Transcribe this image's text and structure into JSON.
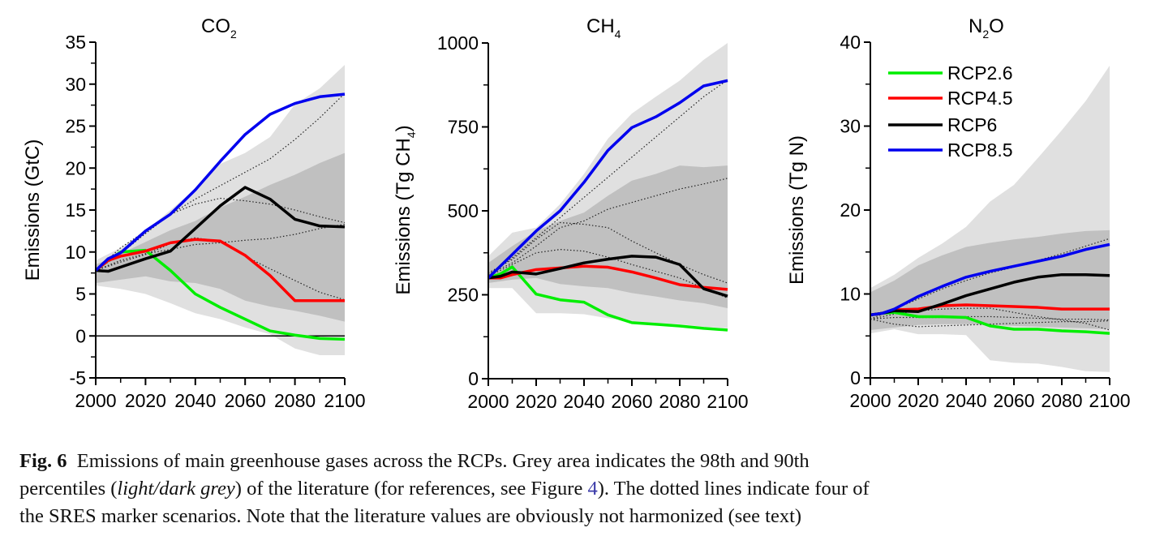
{
  "figure": {
    "caption": {
      "label": "Fig. 6",
      "line1": "Emissions of main greenhouse gases across the RCPs. Grey area indicates the 98th and 90th",
      "line2_a": "percentiles (",
      "line2_italic": "light/dark grey",
      "line2_b": ") of the literature (for references, see Figure ",
      "line2_ref": "4",
      "line2_c": "). The dotted lines indicate four of",
      "line3": "the SRES marker scenarios. Note that the literature values are obviously not harmonized (see text)"
    },
    "colors": {
      "RCP2.6": "#00ee00",
      "RCP4.5": "#ff0000",
      "RCP6": "#000000",
      "RCP8.5": "#0000ee",
      "band98": "#e0e0e0",
      "band90": "#c0c0c0"
    }
  },
  "chart_data": [
    {
      "type": "line",
      "title": "CO",
      "title_sub": "2",
      "xlabel": "",
      "ylabel": "Emissions (GtC)",
      "xlim": [
        2000,
        2100
      ],
      "ylim": [
        -5,
        35
      ],
      "xticks": [
        2000,
        2020,
        2040,
        2060,
        2080,
        2100
      ],
      "yticks": [
        -5,
        0,
        5,
        10,
        15,
        20,
        25,
        30,
        35
      ],
      "zero_line": true,
      "x": [
        2000,
        2005,
        2010,
        2020,
        2030,
        2040,
        2050,
        2060,
        2070,
        2080,
        2090,
        2100
      ],
      "series": [
        {
          "name": "RCP2.6",
          "values": [
            7.8,
            9.0,
            10.0,
            10.2,
            7.8,
            5.0,
            3.4,
            2.0,
            0.6,
            0.1,
            -0.3,
            -0.4
          ]
        },
        {
          "name": "RCP4.5",
          "values": [
            7.8,
            9.0,
            9.5,
            10.1,
            11.1,
            11.5,
            11.3,
            9.6,
            7.2,
            4.2,
            4.2,
            4.2
          ]
        },
        {
          "name": "RCP6",
          "values": [
            7.8,
            7.7,
            8.2,
            9.2,
            10.1,
            12.8,
            15.5,
            17.7,
            16.3,
            13.9,
            13.1,
            13.0
          ]
        },
        {
          "name": "RCP8.5",
          "values": [
            7.8,
            9.2,
            9.9,
            12.5,
            14.5,
            17.4,
            20.8,
            24.0,
            26.4,
            27.7,
            28.5,
            28.8
          ]
        }
      ],
      "sres": [
        {
          "x": [
            2000,
            2010,
            2020,
            2030,
            2040,
            2050,
            2060,
            2070,
            2080,
            2090,
            2100
          ],
          "values": [
            7.8,
            10.5,
            12.5,
            14.5,
            16.3,
            17.9,
            19.5,
            21.1,
            23.4,
            26.0,
            28.9
          ]
        },
        {
          "x": [
            2000,
            2010,
            2020,
            2030,
            2040,
            2050,
            2060,
            2070,
            2080,
            2090,
            2100
          ],
          "values": [
            7.8,
            9.8,
            12.2,
            14.5,
            15.7,
            16.4,
            16.1,
            15.7,
            15.0,
            14.2,
            13.5
          ]
        },
        {
          "x": [
            2000,
            2010,
            2020,
            2030,
            2040,
            2050,
            2060,
            2070,
            2080,
            2090,
            2100
          ],
          "values": [
            7.8,
            9.0,
            9.8,
            10.3,
            10.9,
            11.1,
            11.4,
            11.6,
            12.1,
            12.8,
            13.3
          ]
        },
        {
          "x": [
            2000,
            2010,
            2020,
            2030,
            2040,
            2050,
            2060,
            2070,
            2080,
            2090,
            2100
          ],
          "values": [
            7.8,
            8.8,
            9.7,
            11.0,
            11.7,
            11.2,
            9.5,
            8.0,
            6.6,
            5.2,
            4.3
          ]
        }
      ],
      "band98": {
        "x": [
          2000,
          2010,
          2020,
          2030,
          2040,
          2050,
          2060,
          2070,
          2080,
          2090,
          2100
        ],
        "upper": [
          9.0,
          10.5,
          12.5,
          15.0,
          17.5,
          20.5,
          21.8,
          23.7,
          27.6,
          29.5,
          32.3
        ],
        "lower": [
          6.0,
          5.6,
          5.0,
          3.9,
          2.7,
          2.0,
          1.0,
          0.2,
          -1.5,
          -2.3,
          -2.3
        ]
      },
      "band90": {
        "x": [
          2000,
          2010,
          2020,
          2030,
          2040,
          2050,
          2060,
          2070,
          2080,
          2090,
          2100
        ],
        "upper": [
          8.5,
          9.8,
          11.2,
          12.6,
          13.7,
          15.3,
          16.6,
          18.0,
          19.2,
          20.6,
          21.8
        ],
        "lower": [
          6.3,
          6.7,
          7.1,
          6.5,
          6.3,
          5.6,
          4.2,
          3.5,
          3.0,
          2.4,
          1.7
        ]
      }
    },
    {
      "type": "line",
      "title": "CH",
      "title_sub": "4",
      "xlabel": "",
      "ylabel": "Emissions (Tg CH",
      "ylabel_sub": "4",
      "ylabel_end": ")",
      "xlim": [
        2000,
        2100
      ],
      "ylim": [
        0,
        1000
      ],
      "xticks": [
        2000,
        2020,
        2040,
        2060,
        2080,
        2100
      ],
      "yticks": [
        0,
        250,
        500,
        750,
        1000
      ],
      "yticks_minor": [
        125,
        375,
        625,
        875
      ],
      "x": [
        2000,
        2005,
        2010,
        2020,
        2030,
        2040,
        2050,
        2060,
        2070,
        2080,
        2090,
        2100
      ],
      "series": [
        {
          "name": "RCP2.6",
          "values": [
            300,
            312,
            333,
            252,
            235,
            228,
            190,
            167,
            162,
            157,
            150,
            145
          ]
        },
        {
          "name": "RCP4.5",
          "values": [
            300,
            300,
            310,
            325,
            330,
            335,
            332,
            318,
            300,
            280,
            272,
            266
          ]
        },
        {
          "name": "RCP6",
          "values": [
            300,
            305,
            318,
            312,
            328,
            345,
            356,
            365,
            362,
            340,
            268,
            246
          ]
        },
        {
          "name": "RCP8.5",
          "values": [
            300,
            335,
            370,
            440,
            500,
            585,
            680,
            748,
            780,
            822,
            872,
            888
          ]
        }
      ],
      "sres": [
        {
          "x": [
            2000,
            2010,
            2020,
            2030,
            2040,
            2050,
            2060,
            2070,
            2080,
            2090,
            2100
          ],
          "values": [
            310,
            360,
            420,
            480,
            540,
            600,
            660,
            720,
            780,
            840,
            890
          ]
        },
        {
          "x": [
            2000,
            2010,
            2020,
            2030,
            2040,
            2050,
            2060,
            2070,
            2080,
            2090,
            2100
          ],
          "values": [
            310,
            345,
            395,
            450,
            470,
            505,
            525,
            545,
            565,
            580,
            597
          ]
        },
        {
          "x": [
            2000,
            2010,
            2020,
            2030,
            2040,
            2050,
            2060,
            2070,
            2080,
            2090,
            2100
          ],
          "values": [
            315,
            355,
            415,
            465,
            460,
            450,
            410,
            375,
            340,
            310,
            285
          ]
        },
        {
          "x": [
            2000,
            2010,
            2020,
            2030,
            2040,
            2050,
            2060,
            2070,
            2080,
            2090,
            2100
          ],
          "values": [
            305,
            340,
            375,
            385,
            380,
            362,
            340,
            320,
            300,
            270,
            240
          ]
        }
      ],
      "band98": {
        "x": [
          2000,
          2010,
          2020,
          2030,
          2040,
          2050,
          2060,
          2070,
          2080,
          2090,
          2100
        ],
        "upper": [
          365,
          435,
          450,
          520,
          610,
          715,
          790,
          840,
          888,
          950,
          1000
        ],
        "lower": [
          270,
          270,
          195,
          195,
          192,
          180,
          170,
          165,
          162,
          155,
          150
        ]
      },
      "band90": {
        "x": [
          2000,
          2010,
          2020,
          2030,
          2040,
          2050,
          2060,
          2070,
          2080,
          2090,
          2100
        ],
        "upper": [
          345,
          395,
          440,
          470,
          495,
          545,
          590,
          610,
          635,
          630,
          635
        ],
        "lower": [
          285,
          295,
          300,
          282,
          275,
          270,
          255,
          245,
          233,
          225,
          210
        ]
      }
    },
    {
      "type": "line",
      "title": "N",
      "title_sub": "2",
      "title_end": "O",
      "xlabel": "",
      "ylabel": "Emissions (Tg N)",
      "xlim": [
        2000,
        2100
      ],
      "ylim": [
        0,
        40
      ],
      "xticks": [
        2000,
        2020,
        2040,
        2060,
        2080,
        2100
      ],
      "yticks": [
        0,
        10,
        20,
        30,
        40
      ],
      "yticks_minor": [
        5,
        15,
        25,
        35
      ],
      "legend": {
        "position": "top-left",
        "entries": [
          "RCP2.6",
          "RCP4.5",
          "RCP6",
          "RCP8.5"
        ]
      },
      "x": [
        2000,
        2005,
        2010,
        2020,
        2030,
        2040,
        2050,
        2060,
        2070,
        2080,
        2090,
        2100
      ],
      "series": [
        {
          "name": "RCP2.6",
          "values": [
            7.5,
            7.7,
            7.8,
            7.3,
            7.3,
            7.2,
            6.2,
            5.8,
            5.8,
            5.6,
            5.5,
            5.3
          ]
        },
        {
          "name": "RCP4.5",
          "values": [
            7.5,
            7.7,
            8.1,
            8.2,
            8.6,
            8.7,
            8.6,
            8.5,
            8.4,
            8.2,
            8.2,
            8.2
          ]
        },
        {
          "name": "RCP6",
          "values": [
            7.5,
            7.7,
            8.0,
            7.9,
            8.8,
            9.8,
            10.6,
            11.4,
            12.0,
            12.3,
            12.3,
            12.2
          ]
        },
        {
          "name": "RCP8.5",
          "values": [
            7.5,
            7.7,
            8.2,
            9.7,
            10.9,
            12.0,
            12.7,
            13.3,
            13.9,
            14.5,
            15.3,
            15.9
          ]
        }
      ],
      "sres": [
        {
          "x": [
            2000,
            2010,
            2020,
            2030,
            2040,
            2050,
            2060,
            2070,
            2080,
            2090,
            2100
          ],
          "values": [
            7.0,
            8.2,
            9.4,
            10.6,
            11.6,
            12.5,
            13.2,
            14.0,
            14.8,
            15.7,
            16.6
          ]
        },
        {
          "x": [
            2000,
            2010,
            2020,
            2030,
            2040,
            2050,
            2060,
            2070,
            2080,
            2090,
            2100
          ],
          "values": [
            7.0,
            7.6,
            8.0,
            8.2,
            8.3,
            8.3,
            7.8,
            7.3,
            6.9,
            6.5,
            5.7
          ]
        },
        {
          "x": [
            2000,
            2010,
            2020,
            2030,
            2040,
            2050,
            2060,
            2070,
            2080,
            2090,
            2100
          ],
          "values": [
            7.0,
            7.2,
            7.2,
            7.2,
            7.3,
            7.3,
            7.2,
            7.1,
            7.0,
            7.0,
            6.9
          ]
        },
        {
          "x": [
            2000,
            2010,
            2020,
            2030,
            2040,
            2050,
            2060,
            2070,
            2080,
            2090,
            2100
          ],
          "values": [
            7.0,
            6.4,
            6.1,
            6.2,
            6.3,
            6.4,
            6.5,
            6.6,
            6.7,
            6.7,
            6.8
          ]
        }
      ],
      "band98": {
        "x": [
          2000,
          2010,
          2020,
          2030,
          2040,
          2050,
          2060,
          2070,
          2080,
          2090,
          2100
        ],
        "upper": [
          10.7,
          12.3,
          14.3,
          16.0,
          18.0,
          21.0,
          23.0,
          26.2,
          29.5,
          33.0,
          37.2
        ],
        "lower": [
          5.3,
          5.8,
          5.2,
          5.2,
          5.1,
          2.1,
          1.8,
          1.7,
          1.3,
          0.8,
          0.7
        ]
      },
      "band90": {
        "x": [
          2000,
          2010,
          2020,
          2030,
          2040,
          2050,
          2060,
          2070,
          2080,
          2090,
          2100
        ],
        "upper": [
          10.2,
          11.6,
          13.4,
          14.6,
          15.6,
          16.1,
          16.5,
          16.8,
          17.2,
          17.5,
          17.6
        ],
        "lower": [
          5.7,
          6.0,
          6.3,
          6.4,
          6.4,
          6.3,
          6.2,
          6.1,
          6.0,
          5.9,
          5.8
        ]
      }
    }
  ]
}
